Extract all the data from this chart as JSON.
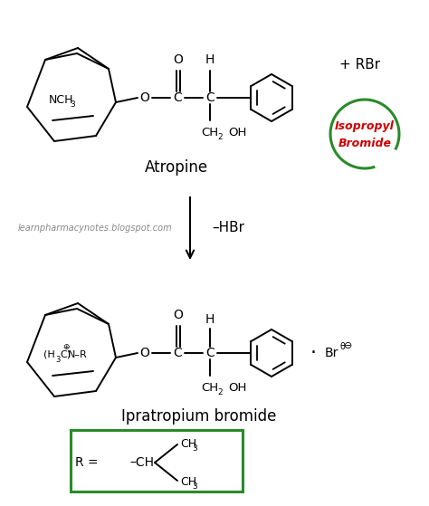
{
  "bg_color": "#ffffff",
  "text_color": "#000000",
  "green_color": "#2a8a2a",
  "red_color": "#cc0000",
  "watermark": "learnpharmacynotes.blogspot.com",
  "atropine_label": "Atropine",
  "product_label": "Ipratropium bromide",
  "arrow_label": "–HBr",
  "rbr_label": "+ RBr",
  "isopropyl_line1": "Isopropyl",
  "isopropyl_line2": "Bromide"
}
